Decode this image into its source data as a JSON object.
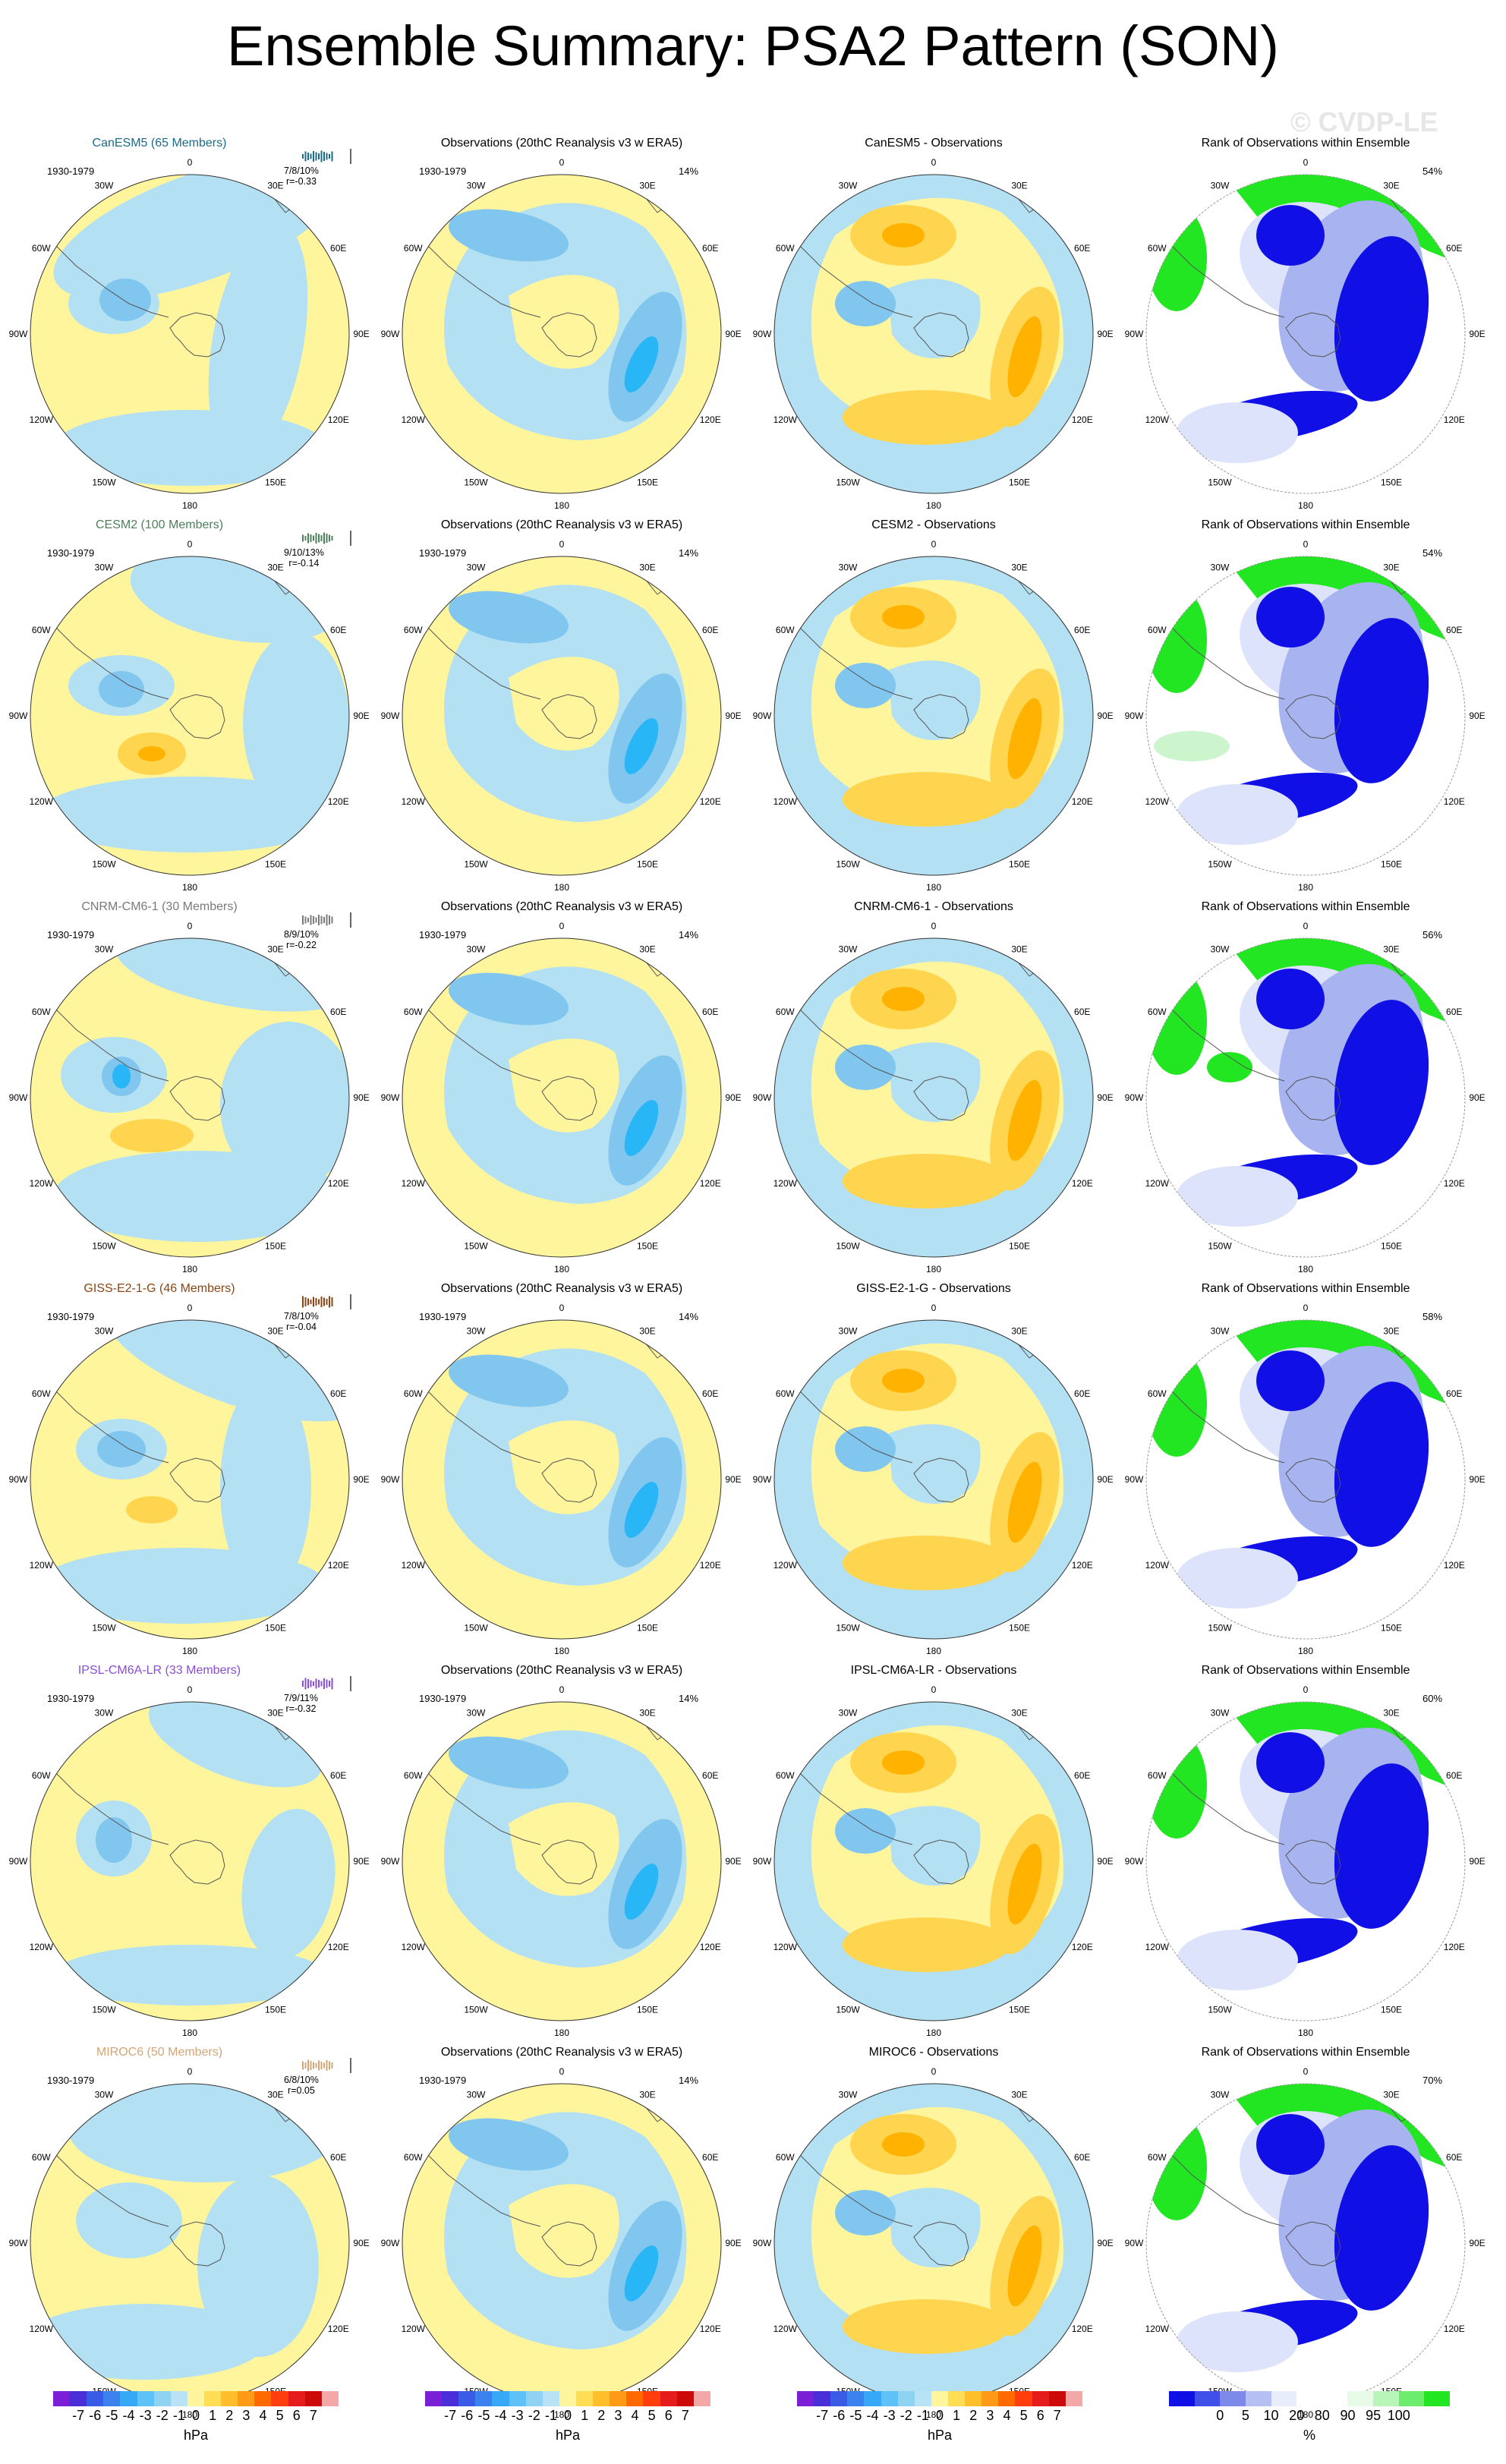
{
  "title": "Ensemble Summary: PSA2 Pattern (SON)",
  "watermark": "© CVDP-LE",
  "period": "1930-1979",
  "obs_percent": "14%",
  "lon_labels": [
    "0",
    "30E",
    "60E",
    "90E",
    "120E",
    "150E",
    "180",
    "150W",
    "120W",
    "90W",
    "60W",
    "30W"
  ],
  "colors": {
    "pos1": "#fff59d",
    "pos2": "#ffd54f",
    "pos3": "#ffb300",
    "neg1": "#b3e0f2",
    "neg2": "#80c6ef",
    "neg3": "#29b6f6",
    "rank_low": "#1010e6",
    "rank_mid": "#a8b4f0",
    "rank_light": "#dde3fa",
    "rank_high": "#22e622",
    "rank_highlight": "#cdf5cd"
  },
  "rows": [
    {
      "model": "CanESM5 (65 Members)",
      "model_color": "#1a6b8a",
      "stats": "7/8/10%",
      "corr": "r=-0.33",
      "diff_title": "CanESM5 - Observations",
      "rank_percent": "54%"
    },
    {
      "model": "CESM2 (100 Members)",
      "model_color": "#4f7f5a",
      "stats": "9/10/13%",
      "corr": "r=-0.14",
      "diff_title": "CESM2 - Observations",
      "rank_percent": "54%"
    },
    {
      "model": "CNRM-CM6-1 (30 Members)",
      "model_color": "#7a7a7a",
      "stats": "8/9/10%",
      "corr": "r=-0.22",
      "diff_title": "CNRM-CM6-1 - Observations",
      "rank_percent": "56%"
    },
    {
      "model": "GISS-E2-1-G (46 Members)",
      "model_color": "#8b4513",
      "stats": "7/8/10%",
      "corr": "r=-0.04",
      "diff_title": "GISS-E2-1-G - Observations",
      "rank_percent": "58%"
    },
    {
      "model": "IPSL-CM6A-LR (33 Members)",
      "model_color": "#8a4fd1",
      "stats": "7/9/11%",
      "corr": "r=-0.32",
      "diff_title": "IPSL-CM6A-LR - Observations",
      "rank_percent": "60%"
    },
    {
      "model": "MIROC6 (50 Members)",
      "model_color": "#d2a679",
      "stats": "6/8/10%",
      "corr": "r=0.05",
      "diff_title": "MIROC6 - Observations",
      "rank_percent": "70%"
    }
  ],
  "obs_title": "Observations (20thC Reanalysis v3 w ERA5)",
  "rank_title": "Rank of Observations within Ensemble",
  "colorbar_hpa": {
    "labels": [
      "-7",
      "-6",
      "-5",
      "-4",
      "-3",
      "-2",
      "-1",
      "0",
      "1",
      "2",
      "3",
      "4",
      "5",
      "6",
      "7"
    ],
    "unit": "hPa",
    "colors": [
      "#7a1fd6",
      "#4a2fd9",
      "#3a5be6",
      "#3c82ef",
      "#36a8f5",
      "#5ec1f7",
      "#8fd2f2",
      "#b8e3f5",
      "#fff59d",
      "#ffdd55",
      "#ffbf2a",
      "#ff9a16",
      "#ff6a00",
      "#ff3d0d",
      "#e41c1c",
      "#cc0a0a",
      "#f4a7a7"
    ]
  },
  "colorbar_rank": {
    "labels": [
      "0",
      "5",
      "10",
      "20",
      "80",
      "90",
      "95",
      "100"
    ],
    "unit": "%",
    "colors": [
      "#1010e6",
      "#3f4fe8",
      "#7d8ae9",
      "#b6c0f2",
      "#e8ecfb",
      "#ffffff",
      "#ffffff",
      "#e8fbe8",
      "#b8f5b8",
      "#6eec6e",
      "#22e622"
    ]
  }
}
